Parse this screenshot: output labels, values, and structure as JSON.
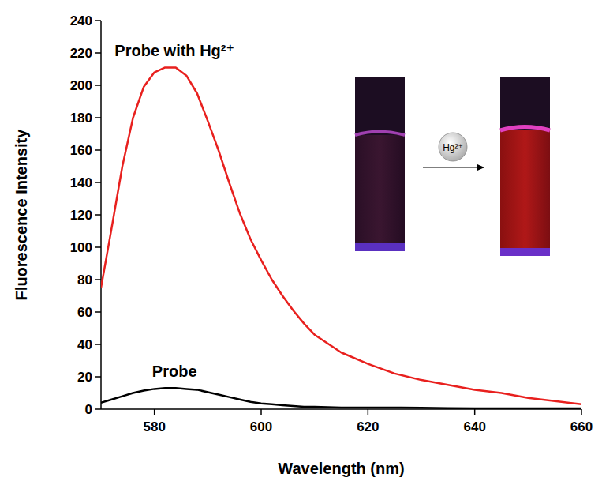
{
  "chart_data": {
    "type": "line",
    "x_label": "Wavelength (nm)",
    "y_label": "Fluorescence  Intensity",
    "x": [
      570,
      572,
      574,
      576,
      578,
      580,
      582,
      584,
      586,
      588,
      590,
      592,
      594,
      596,
      598,
      600,
      602,
      604,
      606,
      608,
      610,
      615,
      620,
      625,
      630,
      635,
      640,
      645,
      650,
      655,
      660
    ],
    "series": [
      {
        "name": "Probe with Hg²⁺",
        "color": "#e8201e",
        "values": [
          75,
          112,
          150,
          180,
          199,
          208,
          211,
          211,
          206,
          195,
          178,
          160,
          140,
          121,
          105,
          92,
          80,
          70,
          61,
          53,
          46,
          35,
          28,
          22,
          18,
          15,
          12,
          10,
          7,
          5,
          3
        ]
      },
      {
        "name": "Probe",
        "color": "#000000",
        "values": [
          4,
          6,
          8,
          10,
          11.5,
          12.5,
          13,
          13,
          12.5,
          12,
          10.5,
          9,
          7.5,
          6,
          4.5,
          3.5,
          3,
          2.5,
          2,
          1.5,
          1.5,
          1,
          1,
          1,
          0.8,
          0.6,
          0.5,
          0.5,
          0.5,
          0.5,
          0.5
        ]
      }
    ],
    "annotations": [
      "Hg²⁺"
    ],
    "xlim": [
      570,
      660
    ],
    "xticks": [
      580,
      600,
      620,
      640,
      660
    ],
    "ylim": [
      0,
      240
    ],
    "yticks": [
      0,
      20,
      40,
      60,
      80,
      100,
      120,
      140,
      160,
      180,
      200,
      220,
      240
    ],
    "grid": false
  }
}
